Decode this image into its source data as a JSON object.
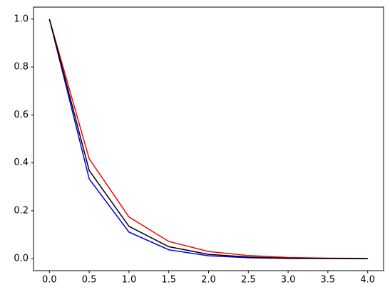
{
  "chart_data": {
    "type": "line",
    "x": [
      0,
      0.5,
      1,
      1.5,
      2,
      2.5,
      3,
      3.5,
      4
    ],
    "series": [
      {
        "color": "#ff0000",
        "values": [
          1,
          0.417,
          0.174,
          0.072,
          0.03,
          0.013,
          0.005,
          0.002,
          0.001
        ]
      },
      {
        "color": "#0000ff",
        "values": [
          1,
          0.333,
          0.111,
          0.037,
          0.012,
          0.004,
          0.001,
          0.0005,
          0.0002
        ]
      },
      {
        "color": "#000000",
        "values": [
          1,
          0.368,
          0.135,
          0.05,
          0.018,
          0.007,
          0.002,
          0.001,
          0.0003
        ]
      }
    ],
    "xlim": [
      -0.2,
      4.2
    ],
    "ylim": [
      -0.05,
      1.05
    ],
    "xticks": [
      {
        "value": 0,
        "label": "0.0"
      },
      0.5,
      {
        "value": 1,
        "label": "1.0"
      },
      1.5,
      {
        "value": 2,
        "label": "2.0"
      },
      2.5,
      {
        "value": 3,
        "label": "3.0"
      },
      3.5,
      {
        "value": 4,
        "label": "4.0"
      }
    ],
    "yticks": [
      {
        "value": 0,
        "label": "0.0"
      },
      0.2,
      0.4,
      0.6,
      0.8,
      {
        "value": 1,
        "label": "1.0"
      }
    ],
    "grid": false
  }
}
